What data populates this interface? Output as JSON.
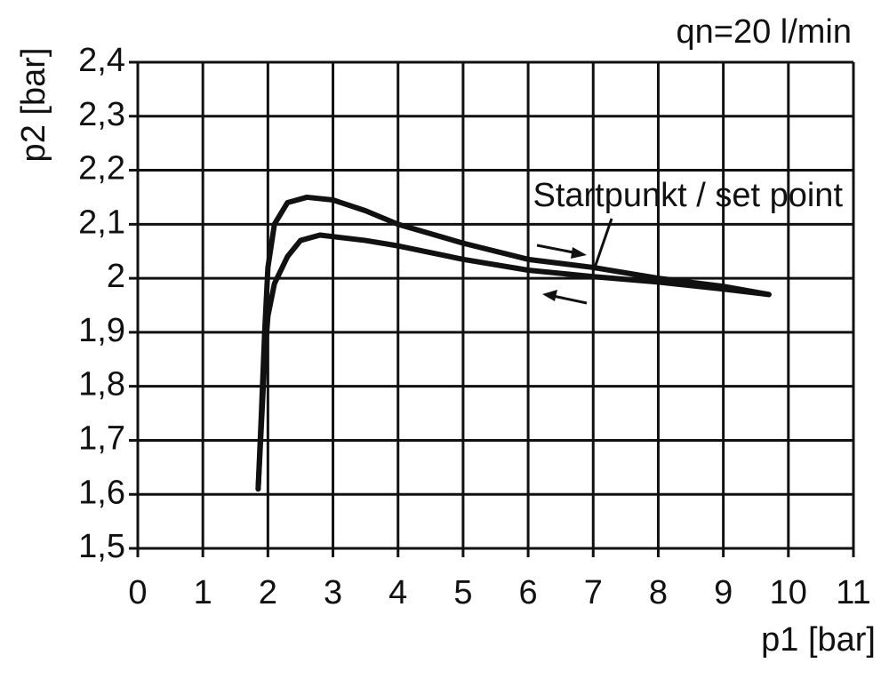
{
  "chart_data": {
    "type": "line",
    "annotation": "qn=20 l/min",
    "note": "Startpunkt / set point",
    "x_label": "p1 [bar]",
    "y_label": "p2 [bar]",
    "xlim": [
      0,
      11
    ],
    "xticks": [
      0,
      1,
      2,
      3,
      4,
      5,
      6,
      7,
      8,
      9,
      10,
      11
    ],
    "ylim": [
      1.5,
      2.4
    ],
    "yticks": [
      {
        "value": 1.5,
        "label": "1,5"
      },
      {
        "value": 1.6,
        "label": "1,6"
      },
      {
        "value": 1.7,
        "label": "1,7"
      },
      {
        "value": 1.8,
        "label": "1,8"
      },
      {
        "value": 1.9,
        "label": "1,9"
      },
      2,
      {
        "value": 2.1,
        "label": "2,1"
      },
      {
        "value": 2.2,
        "label": "2,2"
      },
      {
        "value": 2.3,
        "label": "2,3"
      },
      {
        "value": 2.4,
        "label": "2,4"
      }
    ],
    "grid": true,
    "series": [
      {
        "color": "#111111",
        "x": [
          1.85,
          1.9,
          1.95,
          2.0,
          2.1,
          2.3,
          2.6,
          3.0,
          3.5,
          4,
          5,
          6,
          7,
          8,
          9,
          9.7
        ],
        "values": [
          1.61,
          1.75,
          1.9,
          2.02,
          2.1,
          2.14,
          2.15,
          2.145,
          2.125,
          2.1,
          2.065,
          2.035,
          2.02,
          2.0,
          1.985,
          1.97
        ]
      },
      {
        "color": "#111111",
        "x": [
          1.85,
          1.95,
          2.0,
          2.1,
          2.3,
          2.5,
          2.8,
          3.5,
          4,
          5,
          6,
          7,
          8,
          9,
          9.7
        ],
        "values": [
          1.61,
          1.85,
          1.93,
          1.99,
          2.04,
          2.07,
          2.08,
          2.07,
          2.06,
          2.035,
          2.015,
          2.003,
          1.993,
          1.98,
          1.97
        ]
      }
    ]
  }
}
